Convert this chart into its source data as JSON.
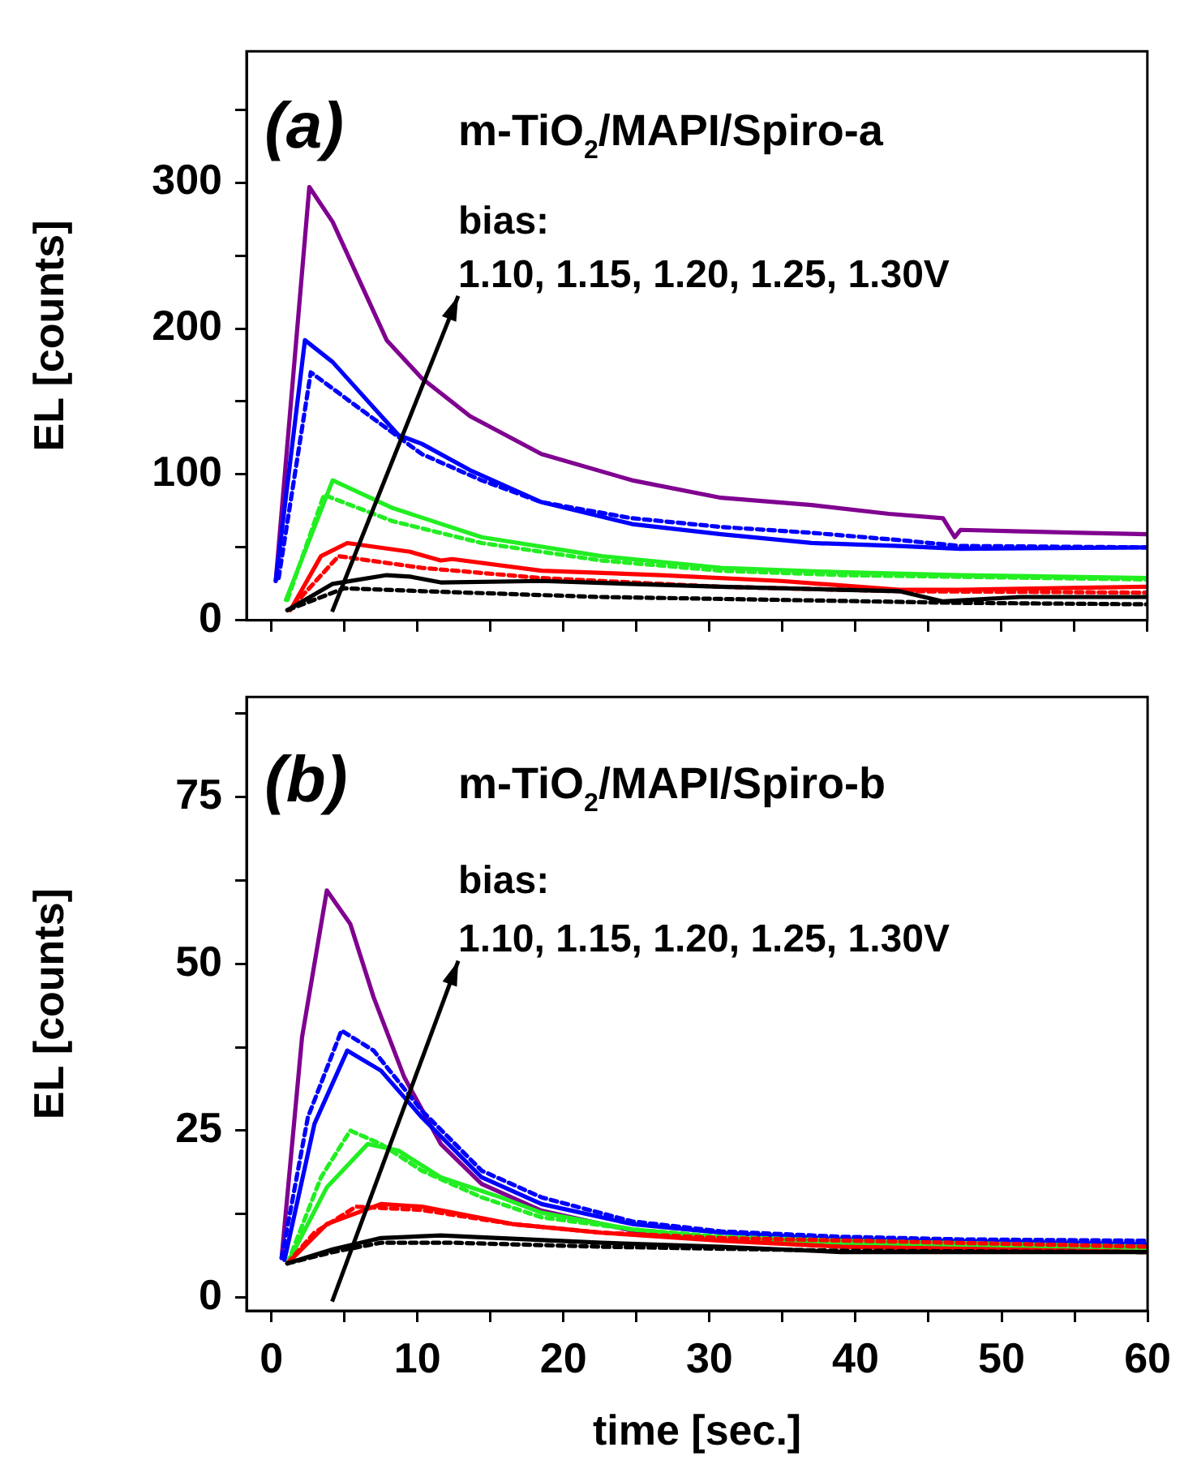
{
  "chart_data": [
    {
      "type": "line",
      "ylabel": "EL [counts]",
      "xlim": [
        -1.7,
        60
      ],
      "ylim": [
        0,
        390
      ],
      "xticks": [
        0,
        {
          "value": 5,
          "label": null
        },
        10,
        {
          "value": 15,
          "label": null
        },
        20,
        {
          "value": 25,
          "label": null
        },
        30,
        {
          "value": 35,
          "label": null
        },
        40,
        {
          "value": 45,
          "label": null
        },
        50,
        {
          "value": 55,
          "label": null
        },
        60
      ],
      "yticks": [
        0,
        {
          "value": 50,
          "label": null
        },
        100,
        {
          "value": 150,
          "label": null
        },
        200,
        {
          "value": 250,
          "label": null
        },
        300,
        {
          "value": 350,
          "label": null
        }
      ],
      "tick_labels": "y",
      "grid": false,
      "legend": false,
      "marker": "none",
      "annotations": [
        "(a)",
        "m-TiO$_{2}$/MAPI/Spiro-a",
        "bias:",
        "1.10, 1.15, 1.20, 1.25, 1.30V"
      ],
      "series": [
        {
          "color": "#000000",
          "line_style": "dotted",
          "x": [
            1.1,
            5,
            10.3,
            22.6,
            35,
            47,
            60
          ],
          "values": [
            7,
            22,
            20,
            16,
            14,
            12,
            11
          ]
        },
        {
          "color": "#000000",
          "line_style": "solid",
          "x": [
            1.1,
            4.2,
            7.9,
            9.5,
            11.6,
            18.5,
            30.8,
            43,
            46,
            51.3,
            60
          ],
          "values": [
            7,
            25,
            31,
            30,
            26,
            27,
            23,
            20,
            13,
            16,
            16
          ]
        },
        {
          "color": "#ff0000",
          "line_style": "dotted",
          "x": [
            1.5,
            4.6,
            10.3,
            18.5,
            30.8,
            43,
            60
          ],
          "values": [
            10,
            44,
            36,
            29,
            23,
            20,
            19
          ]
        },
        {
          "color": "#ff0000",
          "line_style": "solid",
          "x": [
            1.3,
            3.4,
            5.2,
            9.5,
            11.6,
            12.4,
            18.5,
            26.7,
            34.9,
            43,
            47.2,
            60
          ],
          "values": [
            7,
            44,
            53,
            47,
            41,
            42,
            34,
            31,
            27,
            21,
            21,
            23
          ]
        },
        {
          "color": "#22ee22",
          "line_style": "dotted",
          "x": [
            1.1,
            3.6,
            8.3,
            14.4,
            22.6,
            30.8,
            39,
            60
          ],
          "values": [
            14,
            86,
            68,
            53,
            41,
            34,
            31,
            28
          ]
        },
        {
          "color": "#22ee22",
          "line_style": "solid",
          "x": [
            1.0,
            4.2,
            8.3,
            14.4,
            22.6,
            30.8,
            39,
            47.2,
            60
          ],
          "values": [
            14,
            96,
            77,
            57,
            44,
            36,
            33,
            31,
            29
          ]
        },
        {
          "color": "#0000ff",
          "line_style": "dotted",
          "x": [
            0.5,
            2.7,
            6.2,
            10.3,
            14.4,
            18.5,
            24.7,
            30.8,
            37,
            43,
            47.2,
            60
          ],
          "values": [
            29,
            170,
            144,
            114,
            96,
            81,
            70,
            64,
            60,
            55,
            51,
            50
          ]
        },
        {
          "color": "#0000ff",
          "line_style": "solid",
          "x": [
            0.3,
            2.3,
            4.2,
            8.7,
            10.3,
            13.6,
            18.5,
            24.7,
            30.8,
            37,
            43,
            47.2,
            60
          ],
          "values": [
            27,
            192,
            177,
            127,
            121,
            103,
            81,
            66,
            59,
            53,
            51,
            49,
            50
          ]
        },
        {
          "color": "#800090",
          "line_style": "solid",
          "x": [
            0.3,
            2.6,
            4.2,
            7.9,
            10.3,
            13.6,
            18.5,
            24.7,
            30.8,
            37,
            42.3,
            46,
            46.8,
            47.2,
            51.3,
            55.4,
            60
          ],
          "values": [
            27,
            297,
            273,
            192,
            166,
            140,
            114,
            96,
            84,
            79,
            73,
            70,
            57,
            62,
            61,
            60,
            59
          ]
        }
      ]
    },
    {
      "type": "line",
      "xlabel": "time [sec.]",
      "ylabel": "EL [counts]",
      "xlim": [
        -1.7,
        60
      ],
      "ylim": [
        -2,
        90
      ],
      "xticks": [
        0,
        {
          "value": 5,
          "label": null
        },
        10,
        {
          "value": 15,
          "label": null
        },
        20,
        {
          "value": 25,
          "label": null
        },
        30,
        {
          "value": 35,
          "label": null
        },
        40,
        {
          "value": 45,
          "label": null
        },
        50,
        {
          "value": 55,
          "label": null
        },
        60
      ],
      "yticks": [
        0,
        {
          "value": 12.5,
          "label": null
        },
        25,
        {
          "value": 37.5,
          "label": null
        },
        50,
        {
          "value": 62.5,
          "label": null
        },
        75,
        {
          "value": 87.5,
          "label": null
        }
      ],
      "grid": false,
      "legend": false,
      "marker": "none",
      "annotations": [
        "(b)",
        "m-TiO$_{2}$/MAPI/Spiro-b",
        "bias:",
        "1.10, 1.15, 1.20, 1.25, 1.30V"
      ],
      "series": [
        {
          "color": "#000000",
          "line_style": "dotted",
          "x": [
            1.1,
            4.2,
            7.5,
            12.4,
            22.6,
            39,
            60
          ],
          "values": [
            5.1,
            6.8,
            8.2,
            8.2,
            7.6,
            7,
            6.8
          ]
        },
        {
          "color": "#000000",
          "line_style": "solid",
          "x": [
            1.1,
            4.2,
            7.5,
            11.6,
            22.6,
            30.8,
            39,
            60
          ],
          "values": [
            5.1,
            7.2,
            8.9,
            9.3,
            8.2,
            7.6,
            6.8,
            6.8
          ]
        },
        {
          "color": "#ff0000",
          "line_style": "dotted",
          "x": [
            1.1,
            2.95,
            5.8,
            10.3,
            16.5,
            22.6,
            30.8,
            60
          ],
          "values": [
            5.1,
            9.7,
            13.6,
            13.1,
            11,
            9.7,
            8.9,
            7.6
          ]
        },
        {
          "color": "#ff0000",
          "line_style": "solid",
          "x": [
            1.1,
            3.8,
            7.5,
            10.3,
            16.5,
            22.6,
            30.8,
            39,
            60
          ],
          "values": [
            5.1,
            11,
            14,
            13.6,
            11,
            9.7,
            8.5,
            7.6,
            6.8
          ]
        },
        {
          "color": "#22ee22",
          "line_style": "dotted",
          "x": [
            1.1,
            3.4,
            5.4,
            7.5,
            10.3,
            14.4,
            18.5,
            24.7,
            30.8,
            39,
            60
          ],
          "values": [
            5.1,
            18,
            25,
            23,
            19,
            15,
            12,
            10.2,
            9.1,
            8.5,
            7.6
          ]
        },
        {
          "color": "#22ee22",
          "line_style": "solid",
          "x": [
            1.1,
            3.8,
            6.6,
            8.7,
            11.6,
            15.7,
            18.5,
            24.7,
            30.8,
            39,
            60
          ],
          "values": [
            5.1,
            16.5,
            23,
            22,
            18,
            15,
            12.7,
            10.2,
            8.9,
            8.2,
            7.4
          ]
        },
        {
          "color": "#0000ff",
          "line_style": "dotted",
          "x": [
            0.7,
            2.5,
            4.8,
            7,
            10.3,
            14.4,
            18.5,
            24.7,
            30.8,
            39,
            47.2,
            60
          ],
          "values": [
            5.9,
            27,
            40,
            37,
            28,
            19,
            15,
            11.4,
            9.9,
            9.1,
            8.7,
            8.5
          ]
        },
        {
          "color": "#0000ff",
          "line_style": "solid",
          "x": [
            0.9,
            2.95,
            5.2,
            7.5,
            10.3,
            14.4,
            18.5,
            24.7,
            30.8,
            39,
            60
          ],
          "values": [
            5.6,
            26,
            37,
            34,
            27,
            18,
            14,
            11,
            9.7,
            8.7,
            8
          ]
        },
        {
          "color": "#800090",
          "line_style": "solid",
          "x": [
            0.7,
            2.1,
            3.8,
            5.4,
            7,
            9.1,
            11.6,
            14.4,
            18.5,
            24.7,
            30.8,
            39,
            47.2,
            60
          ],
          "values": [
            5.9,
            39,
            61,
            56,
            45,
            33,
            23,
            17,
            13,
            10,
            8.9,
            7.9,
            7.4,
            6.8
          ]
        }
      ]
    }
  ]
}
